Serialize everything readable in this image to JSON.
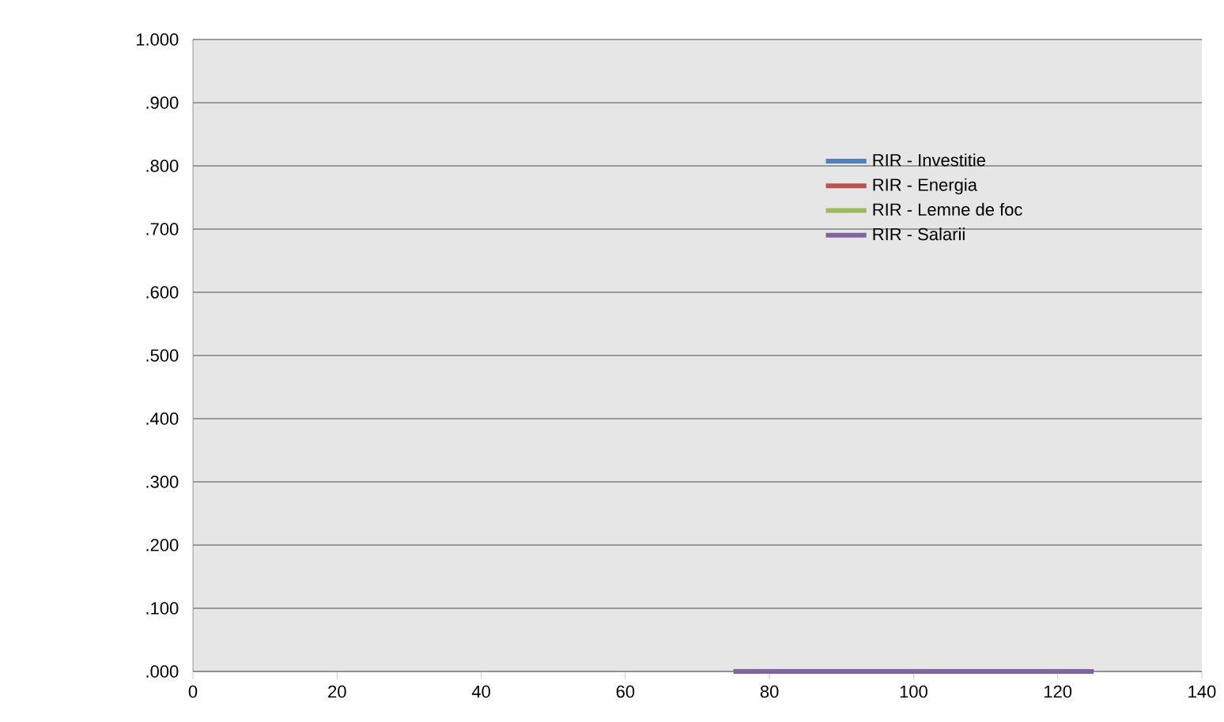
{
  "chart_data": {
    "type": "line",
    "x": [
      75,
      125
    ],
    "series": [
      {
        "name": "RIR - Investitie",
        "color": "#4f81bd",
        "values": [
          null,
          null
        ]
      },
      {
        "name": "RIR - Energia",
        "color": "#c0504d",
        "values": [
          null,
          null
        ]
      },
      {
        "name": "RIR - Lemne de foc",
        "color": "#9bbb59",
        "values": [
          null,
          null
        ]
      },
      {
        "name": "RIR - Salarii",
        "color": "#8064a2",
        "values": [
          0,
          0
        ]
      }
    ],
    "xlim": [
      0,
      140
    ],
    "xticks": [
      0,
      20,
      40,
      60,
      80,
      100,
      120,
      140
    ],
    "ylim": [
      0,
      1
    ],
    "yticks": [
      {
        "value": 0,
        "label": ".000"
      },
      {
        "value": 0.1,
        "label": ".100"
      },
      {
        "value": 0.2,
        "label": ".200"
      },
      {
        "value": 0.3,
        "label": ".300"
      },
      {
        "value": 0.4,
        "label": ".400"
      },
      {
        "value": 0.5,
        "label": ".500"
      },
      {
        "value": 0.6,
        "label": ".600"
      },
      {
        "value": 0.7,
        "label": ".700"
      },
      {
        "value": 0.8,
        "label": ".800"
      },
      {
        "value": 0.9,
        "label": ".900"
      },
      {
        "value": 1,
        "label": "1.000"
      }
    ],
    "grid": "y",
    "legend": "top right",
    "marker": "none",
    "line_style": "solid"
  }
}
